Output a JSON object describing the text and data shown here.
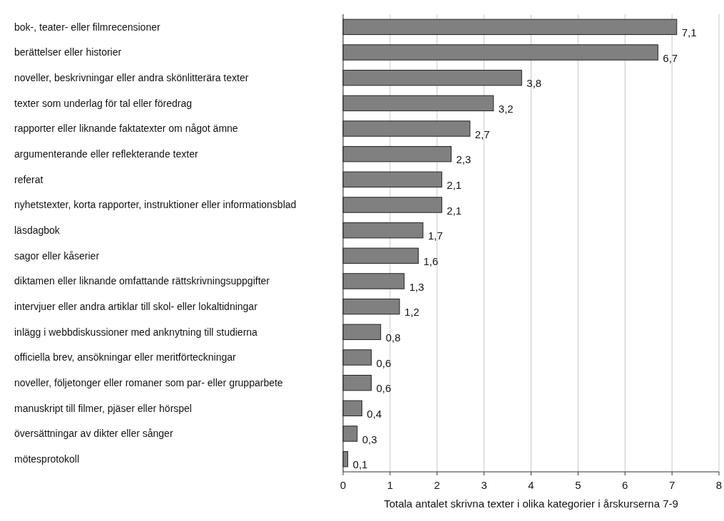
{
  "chart_data": {
    "type": "bar",
    "orientation": "horizontal",
    "xlabel": "Totala antalet skrivna texter i olika kategorier i årskurserna 7-9",
    "categories": [
      "bok-, teater- eller filmrecensioner",
      "berättelser eller historier",
      "noveller, beskrivningar eller andra skönlitterära texter",
      "texter som underlag för tal eller föredrag",
      "rapporter eller liknande faktatexter om något ämne",
      "argumenterande eller reflekterande texter",
      "referat",
      "nyhetstexter, korta rapporter, instruktioner eller informationsblad",
      "läsdagbok",
      "sagor eller kåserier",
      "diktamen eller liknande omfattande rättskrivningsuppgifter",
      "intervjuer eller andra artiklar till skol- eller lokaltidningar",
      "inlägg i webbdiskussioner med anknytning till studierna",
      "officiella brev, ansökningar eller meritförteckningar",
      "noveller, följetonger eller romaner som par- eller grupparbete",
      "manuskript till filmer, pjäser eller hörspel",
      "översättningar av dikter eller sånger",
      "mötesprotokoll"
    ],
    "values": [
      7.1,
      6.7,
      3.8,
      3.2,
      2.7,
      2.3,
      2.1,
      2.1,
      1.7,
      1.6,
      1.3,
      1.2,
      0.8,
      0.6,
      0.6,
      0.4,
      0.3,
      0.1
    ],
    "value_labels": [
      "7,1",
      "6,7",
      "3,8",
      "3,2",
      "2,7",
      "2,3",
      "2,1",
      "2,1",
      "1,7",
      "1,6",
      "1,3",
      "1,2",
      "0,8",
      "0,6",
      "0,6",
      "0,4",
      "0,3",
      "0,1"
    ],
    "color": "#808080",
    "xlim": [
      0,
      8
    ],
    "xticks": [
      0,
      1,
      2,
      3,
      4,
      5,
      6,
      7,
      8
    ],
    "grid": "x"
  }
}
